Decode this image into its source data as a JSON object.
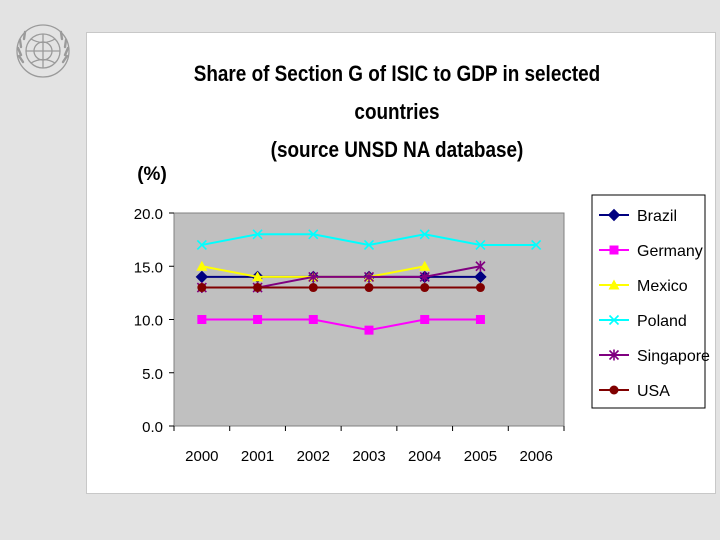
{
  "logo": {
    "icon": "un-emblem-icon"
  },
  "chart_data": {
    "type": "line",
    "title_lines": [
      "Share of Section G of ISIC to GDP in selected",
      "countries",
      "(source UNSD NA database)"
    ],
    "ylabel": "(%)",
    "xlabel": "",
    "categories": [
      "2000",
      "2001",
      "2002",
      "2003",
      "2004",
      "2005",
      "2006"
    ],
    "ylim": [
      0,
      20
    ],
    "yticks": [
      "0.0",
      "5.0",
      "10.0",
      "15.0",
      "20.0"
    ],
    "ytick_values": [
      0,
      5,
      10,
      15,
      20
    ],
    "plot_background": "#c0c0c0",
    "grid": false,
    "legend_position": "right",
    "series": [
      {
        "name": "Brazil",
        "color": "#000080",
        "marker": "diamond",
        "values": [
          14,
          14,
          14,
          14,
          14,
          14,
          null
        ]
      },
      {
        "name": "Germany",
        "color": "#ff00ff",
        "marker": "square",
        "values": [
          10,
          10,
          10,
          9,
          10,
          10,
          null
        ]
      },
      {
        "name": "Mexico",
        "color": "#ffff00",
        "marker": "triangle",
        "values": [
          15,
          14,
          14,
          14,
          15,
          null,
          null
        ]
      },
      {
        "name": "Poland",
        "color": "#00ffff",
        "marker": "x",
        "values": [
          17,
          18,
          18,
          17,
          18,
          17,
          17
        ]
      },
      {
        "name": "Singapore",
        "color": "#800080",
        "marker": "star",
        "values": [
          13,
          13,
          14,
          14,
          14,
          15,
          null
        ]
      },
      {
        "name": "USA",
        "color": "#800000",
        "marker": "circle",
        "values": [
          13,
          13,
          13,
          13,
          13,
          13,
          null
        ]
      }
    ]
  }
}
